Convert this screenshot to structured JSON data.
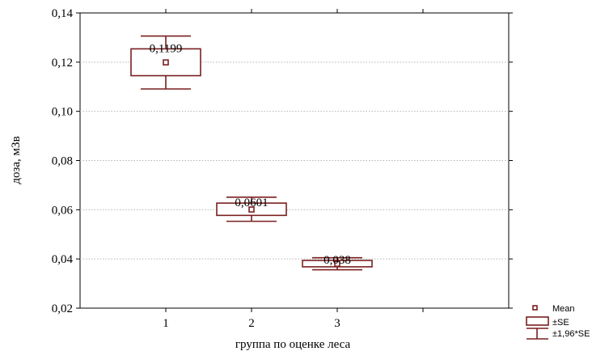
{
  "chart_data": {
    "type": "box",
    "xlabel": "группа по оценке леса",
    "ylabel": "доза, мЗв",
    "categories": [
      "1",
      "2",
      "3"
    ],
    "ylim": [
      0.02,
      0.14
    ],
    "yticks": [
      "0,02",
      "0,04",
      "0,06",
      "0,08",
      "0,10",
      "0,12",
      "0,14"
    ],
    "ytick_values": [
      0.02,
      0.04,
      0.06,
      0.08,
      0.1,
      0.12,
      0.14
    ],
    "grid": true,
    "legend_position": "bottom-right",
    "color": "#7a1f1f",
    "series": [
      {
        "category": "1",
        "mean": 0.1199,
        "mean_label": "0,1199",
        "se_low": 0.1145,
        "se_high": 0.1254,
        "ci_low": 0.1091,
        "ci_high": 0.1306
      },
      {
        "category": "2",
        "mean": 0.0601,
        "mean_label": "0,0601",
        "se_low": 0.0577,
        "se_high": 0.0627,
        "ci_low": 0.0553,
        "ci_high": 0.0651
      },
      {
        "category": "3",
        "mean": 0.038,
        "mean_label": "0,038",
        "se_low": 0.0368,
        "se_high": 0.0394,
        "ci_low": 0.0356,
        "ci_high": 0.0405
      }
    ],
    "legend": {
      "mean": "Mean",
      "se": "±SE",
      "ci": "±1,96*SE"
    }
  }
}
